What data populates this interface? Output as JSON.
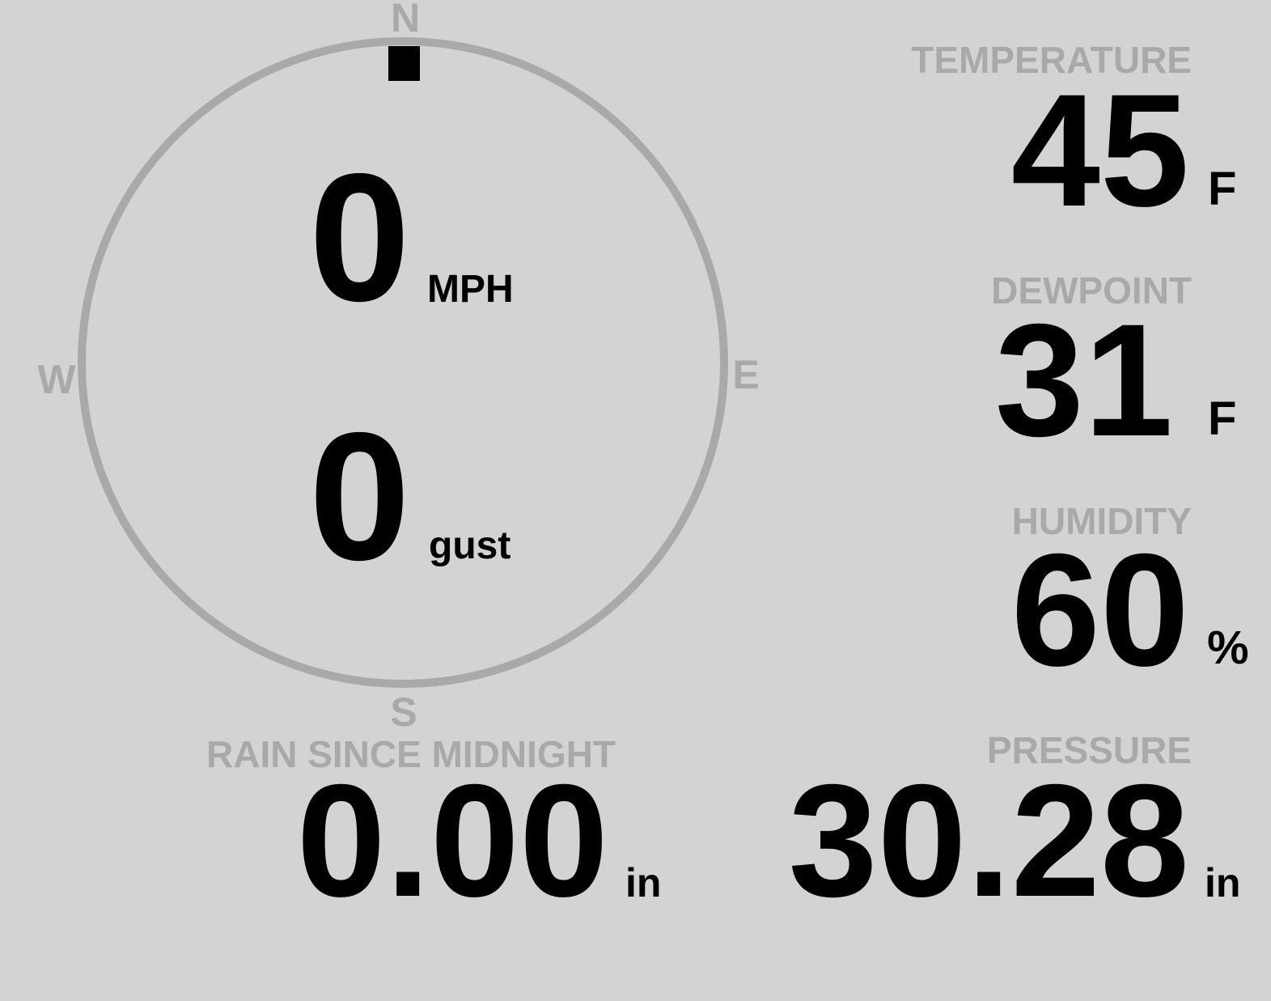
{
  "wind": {
    "compass": {
      "north": "N",
      "east": "E",
      "south": "S",
      "west": "W"
    },
    "direction_degrees": 0,
    "speed": "0",
    "speed_unit": "MPH",
    "gust": "0",
    "gust_unit": "gust",
    "ring_color": "#a9a9a9",
    "indicator_color": "#000000"
  },
  "temperature": {
    "label": "TEMPERATURE",
    "value": "45",
    "unit": "F"
  },
  "dewpoint": {
    "label": "DEWPOINT",
    "value": "31",
    "unit": "F"
  },
  "humidity": {
    "label": "HUMIDITY",
    "value": "60",
    "unit": "%"
  },
  "rain": {
    "label": "RAIN SINCE MIDNIGHT",
    "value": "0.00",
    "unit": "in"
  },
  "pressure": {
    "label": "PRESSURE",
    "value": "30.28",
    "unit": "in"
  },
  "colors": {
    "background": "#d3d3d3",
    "label": "#a9a9a9",
    "value": "#000000"
  }
}
